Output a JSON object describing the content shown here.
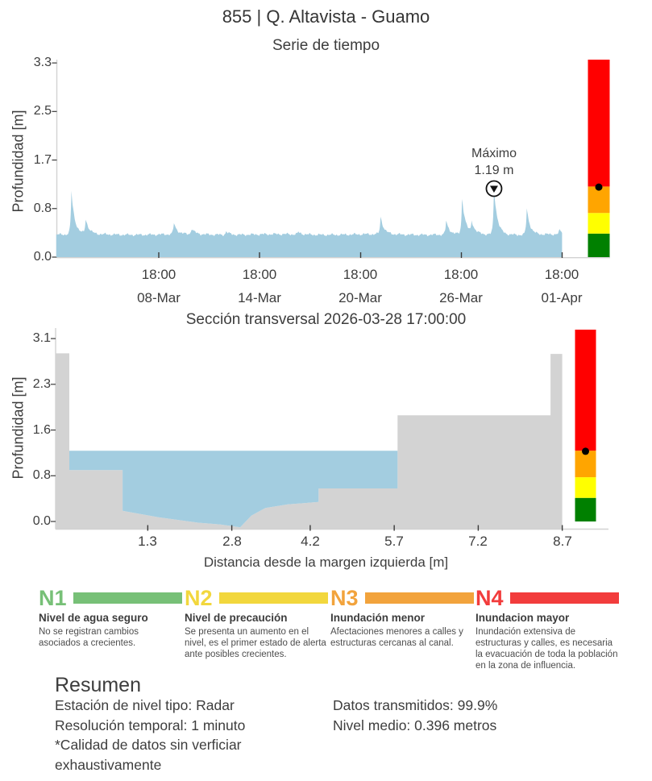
{
  "header": {
    "title": "855 | Q. Altavista - Guamo"
  },
  "levels_bar": {
    "dot_value": 1.19,
    "segments": [
      {
        "name": "N1",
        "color": "#008000",
        "from": 0.0,
        "to": 0.4
      },
      {
        "name": "N2",
        "color": "#FFFF00",
        "from": 0.4,
        "to": 0.75
      },
      {
        "name": "N3",
        "color": "#FFA500",
        "from": 0.75,
        "to": 1.2
      },
      {
        "name": "N4",
        "color": "#FF0000",
        "from": 1.2,
        "to": null
      }
    ]
  },
  "chart_data": [
    {
      "type": "area",
      "title": "Serie de tiempo",
      "ylabel": "Profundidad [m]",
      "ylim": [
        0,
        3.3
      ],
      "yticks": [
        "0.0",
        "0.8",
        "1.7",
        "2.5",
        "3.3"
      ],
      "ytick_values": [
        0,
        0.825,
        1.65,
        2.475,
        3.3
      ],
      "xticks": [
        {
          "time": "18:00",
          "date": "08-Mar"
        },
        {
          "time": "18:00",
          "date": "14-Mar"
        },
        {
          "time": "18:00",
          "date": "20-Mar"
        },
        {
          "time": "18:00",
          "date": "26-Mar"
        },
        {
          "time": "18:00",
          "date": "01-Apr"
        }
      ],
      "series_color": "#A3CDE0",
      "baseline": 0.385,
      "t_range_days": [
        -6.1,
        24.0
      ],
      "spikes": [
        [
          -5.2,
          1.13
        ],
        [
          -4.35,
          0.66
        ],
        [
          0.9,
          0.59
        ],
        [
          1.95,
          0.5
        ],
        [
          4.0,
          0.46
        ],
        [
          8.3,
          0.44
        ],
        [
          13.2,
          0.7
        ],
        [
          17.1,
          0.63
        ],
        [
          18.05,
          1.03
        ],
        [
          18.62,
          0.6
        ],
        [
          19.95,
          1.19
        ],
        [
          21.9,
          0.85
        ],
        [
          23.85,
          0.47
        ]
      ],
      "annotation": {
        "label": "Máximo",
        "value": "1.19 m",
        "max_value": 1.19,
        "t_days": 19.95
      }
    },
    {
      "type": "area",
      "title": "Sección transversal 2026-03-28 17:00:00",
      "ylabel": "Profundidad [m]",
      "xlabel": "Distancia desde la margen izquierda [m]",
      "yticks": [
        "0.0",
        "0.8",
        "1.6",
        "2.3",
        "3.1"
      ],
      "ytick_values": [
        0,
        0.775,
        1.55,
        2.325,
        3.1
      ],
      "xticks": [
        "1.3",
        "2.8",
        "4.2",
        "5.7",
        "7.2",
        "8.7"
      ],
      "xtick_values": [
        1.3,
        2.8,
        4.2,
        5.7,
        7.2,
        8.7
      ],
      "ground_color": "#D3D3D3",
      "water_color": "#A3CDE0",
      "water_surface": 1.2,
      "water_extent": [
        -0.1,
        5.76
      ],
      "ground_profile": [
        [
          -0.345,
          2.85
        ],
        [
          -0.1,
          2.85
        ],
        [
          -0.1,
          0.87
        ],
        [
          0.85,
          0.87
        ],
        [
          0.85,
          0.18
        ],
        [
          1.5,
          0.07
        ],
        [
          2.2,
          -0.02
        ],
        [
          2.6,
          -0.05
        ],
        [
          2.95,
          -0.1
        ],
        [
          3.15,
          0.1
        ],
        [
          3.4,
          0.23
        ],
        [
          3.8,
          0.29
        ],
        [
          4.35,
          0.33
        ],
        [
          4.35,
          0.56
        ],
        [
          5.76,
          0.56
        ],
        [
          5.76,
          1.8
        ],
        [
          8.49,
          1.8
        ],
        [
          8.49,
          2.84
        ],
        [
          8.7,
          2.84
        ]
      ],
      "bed_profile": [
        [
          5.76,
          0.56
        ],
        [
          4.35,
          0.56
        ],
        [
          4.35,
          0.33
        ],
        [
          3.8,
          0.29
        ],
        [
          3.4,
          0.23
        ],
        [
          3.15,
          0.1
        ],
        [
          2.95,
          -0.1
        ],
        [
          2.6,
          -0.05
        ],
        [
          2.2,
          -0.02
        ],
        [
          1.5,
          0.07
        ],
        [
          0.85,
          0.18
        ],
        [
          0.85,
          0.87
        ],
        [
          -0.1,
          0.87
        ]
      ]
    }
  ],
  "legend": {
    "items": [
      {
        "code": "N1",
        "color": "#77C077",
        "title": "Nivel de agua seguro",
        "desc": "No se registran cambios asociados a crecientes."
      },
      {
        "code": "N2",
        "color": "#F2D73D",
        "title": "Nivel de precaución",
        "desc": "Se presenta un aumento en el nivel, es el primer estado de alerta ante posibles crecientes."
      },
      {
        "code": "N3",
        "color": "#F2A33C",
        "title": "Inundación menor",
        "desc": "Afectaciones menores a calles y estructuras cercanas al canal."
      },
      {
        "code": "N4",
        "color": "#F23C3C",
        "title": "Inundacion mayor",
        "desc": "Inundación extensiva de estructuras y calles, es necesaria la evacuación de toda la población en la zona de influencia."
      }
    ]
  },
  "summary": {
    "heading": "Resumen",
    "left": [
      "Estación de nivel tipo: Radar",
      "Resolución temporal: 1 minuto",
      "*Calidad de datos sin verficiar exhaustivamente"
    ],
    "right": [
      "Datos transmitidos: 99.9%",
      "Nivel medio: 0.396 metros"
    ]
  }
}
